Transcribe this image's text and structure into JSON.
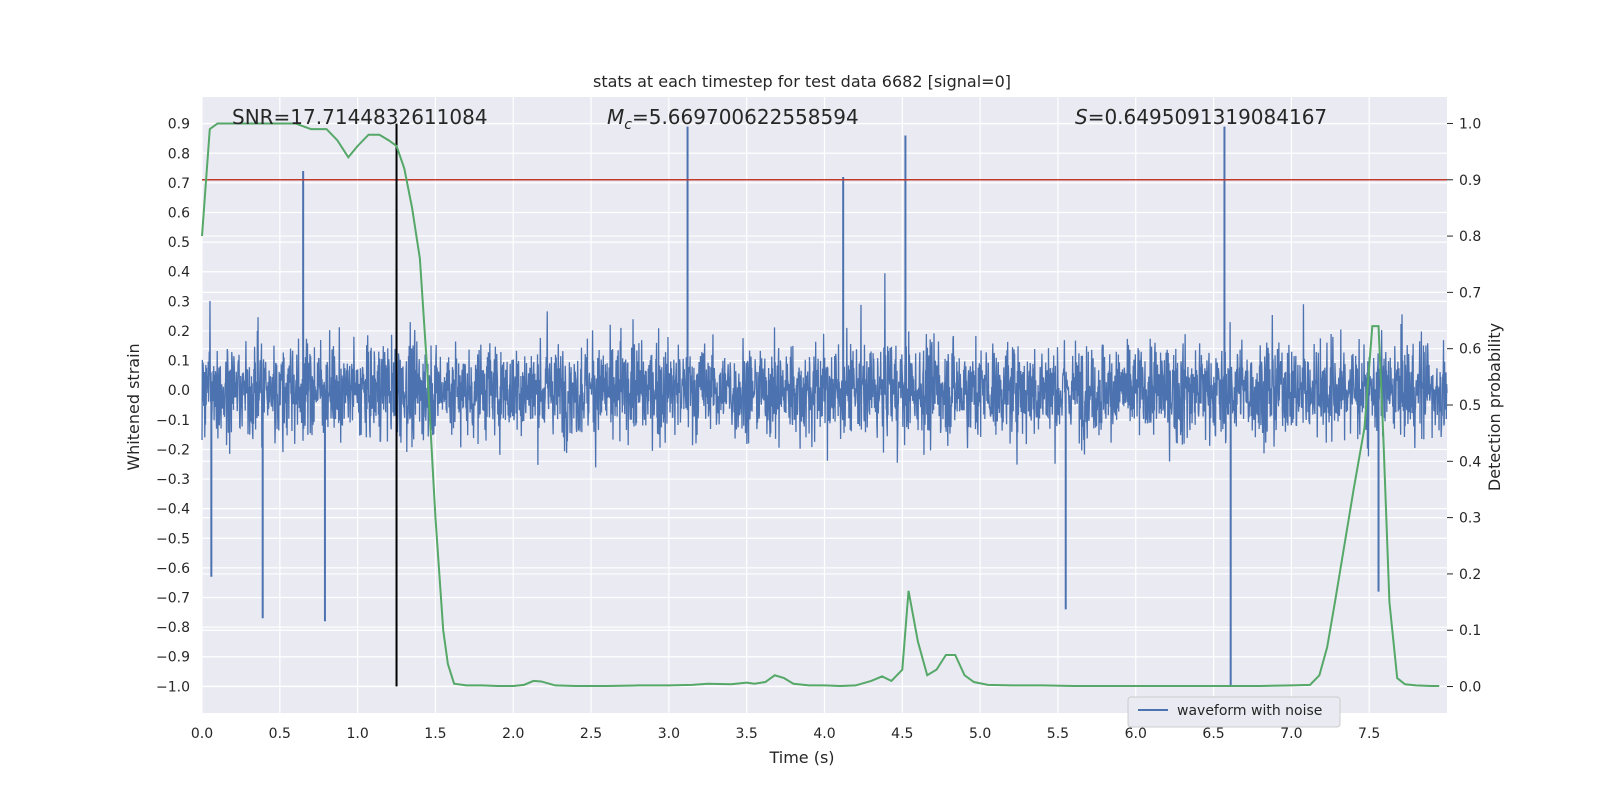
{
  "chart_data": {
    "type": "line",
    "title": "stats at each timestep for test data 6682 [signal=0]",
    "xlabel": "Time (s)",
    "ylabel_left": "Whitened strain",
    "ylabel_right": "Detection probability",
    "xlim": [
      0.0,
      8.0
    ],
    "ylim_left": [
      -1.09,
      0.99
    ],
    "ylim_right": [
      -0.047,
      1.047
    ],
    "x_ticks": [
      "0.0",
      "0.5",
      "1.0",
      "1.5",
      "2.0",
      "2.5",
      "3.0",
      "3.5",
      "4.0",
      "4.5",
      "5.0",
      "5.5",
      "6.0",
      "6.5",
      "7.0",
      "7.5"
    ],
    "y_left_ticks": [
      "0.9",
      "0.8",
      "0.7",
      "0.6",
      "0.5",
      "0.4",
      "0.3",
      "0.2",
      "0.1",
      "0.0",
      "-0.1",
      "-0.2",
      "-0.3",
      "-0.4",
      "-0.5",
      "-0.6",
      "-0.7",
      "-0.8",
      "-0.9",
      "-1.0"
    ],
    "y_right_ticks": [
      "1.0",
      "0.9",
      "0.8",
      "0.7",
      "0.6",
      "0.5",
      "0.4",
      "0.3",
      "0.2",
      "0.1",
      "0.0"
    ],
    "grid": true,
    "legend": {
      "entries": [
        "waveform with noise"
      ],
      "placement": "lower-right"
    },
    "annotations": {
      "snr": "SNR=17.7144832611084",
      "mc_label": "M",
      "mc_sub": "c",
      "mc_value": "=5.669700622558594",
      "s_label": "S",
      "s_value": "=0.6495091319084167"
    },
    "threshold_line": {
      "axis": "right",
      "y": 0.9,
      "color": "#c0392b"
    },
    "vertical_marker": {
      "x": 1.25,
      "y_range_left": [
        -1.0,
        0.9
      ],
      "color": "#000000"
    },
    "waveform": {
      "name": "waveform with noise",
      "color": "#4c72b0",
      "duration_s": 8.0,
      "typical_amplitude": [
        -0.45,
        0.45
      ],
      "spikes": [
        {
          "t": 0.65,
          "v": 0.74
        },
        {
          "t": 0.39,
          "v": -0.77
        },
        {
          "t": 0.79,
          "v": -0.78
        },
        {
          "t": 3.12,
          "v": 0.89
        },
        {
          "t": 4.12,
          "v": 0.72
        },
        {
          "t": 4.52,
          "v": 0.86
        },
        {
          "t": 6.57,
          "v": 0.89
        },
        {
          "t": 6.61,
          "v": -1.0
        },
        {
          "t": 1.25,
          "v": 0.66
        },
        {
          "t": 7.56,
          "v": -0.68
        },
        {
          "t": 0.06,
          "v": -0.63
        },
        {
          "t": 5.55,
          "v": -0.74
        }
      ]
    },
    "detection_probability": {
      "name": "detection probability",
      "color": "#55a868",
      "x": [
        0.0,
        0.05,
        0.1,
        0.2,
        0.3,
        0.4,
        0.5,
        0.6,
        0.7,
        0.8,
        0.87,
        0.94,
        1.0,
        1.07,
        1.14,
        1.2,
        1.25,
        1.3,
        1.35,
        1.4,
        1.45,
        1.5,
        1.55,
        1.58,
        1.62,
        1.7,
        1.8,
        1.9,
        2.0,
        2.07,
        2.13,
        2.18,
        2.27,
        2.4,
        2.6,
        2.8,
        3.0,
        3.15,
        3.25,
        3.4,
        3.5,
        3.55,
        3.62,
        3.68,
        3.74,
        3.8,
        3.9,
        4.0,
        4.1,
        4.2,
        4.3,
        4.37,
        4.43,
        4.5,
        4.54,
        4.6,
        4.66,
        4.72,
        4.78,
        4.84,
        4.9,
        4.96,
        5.05,
        5.2,
        5.4,
        5.6,
        5.8,
        6.0,
        6.2,
        6.4,
        6.6,
        6.8,
        7.0,
        7.12,
        7.18,
        7.23,
        7.28,
        7.34,
        7.4,
        7.47,
        7.52,
        7.56,
        7.59,
        7.63,
        7.68,
        7.73,
        7.8,
        7.9,
        7.95
      ],
      "y": [
        0.8,
        0.99,
        1.0,
        1.0,
        1.0,
        1.0,
        1.0,
        1.0,
        0.99,
        0.99,
        0.97,
        0.94,
        0.96,
        0.98,
        0.98,
        0.97,
        0.96,
        0.92,
        0.85,
        0.76,
        0.55,
        0.3,
        0.1,
        0.04,
        0.005,
        0.002,
        0.002,
        0.001,
        0.001,
        0.003,
        0.01,
        0.009,
        0.002,
        0.001,
        0.001,
        0.002,
        0.002,
        0.003,
        0.005,
        0.004,
        0.007,
        0.005,
        0.008,
        0.02,
        0.015,
        0.005,
        0.002,
        0.002,
        0.001,
        0.002,
        0.01,
        0.018,
        0.01,
        0.03,
        0.17,
        0.08,
        0.02,
        0.03,
        0.056,
        0.056,
        0.02,
        0.008,
        0.003,
        0.002,
        0.002,
        0.001,
        0.001,
        0.001,
        0.001,
        0.001,
        0.001,
        0.001,
        0.002,
        0.003,
        0.02,
        0.07,
        0.15,
        0.25,
        0.35,
        0.46,
        0.64,
        0.64,
        0.45,
        0.15,
        0.015,
        0.004,
        0.002,
        0.001,
        0.001
      ]
    }
  }
}
